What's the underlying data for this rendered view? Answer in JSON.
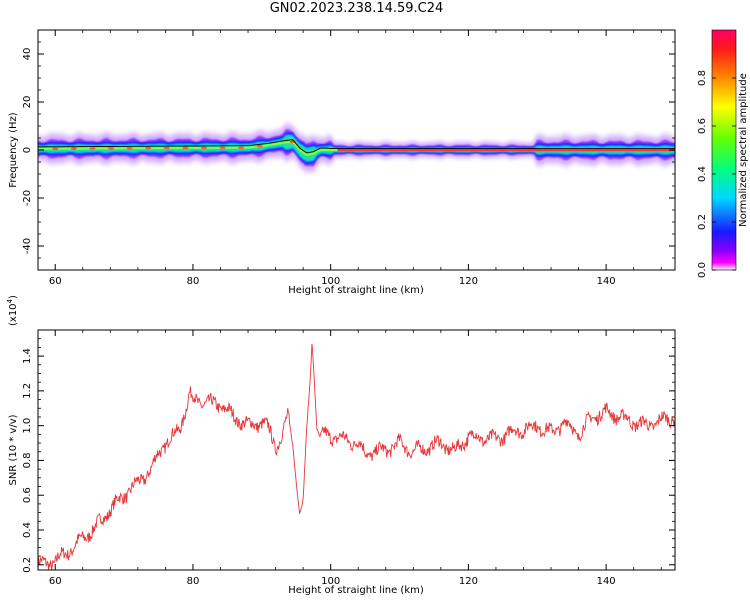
{
  "title": "GN02.2023.238.14.59.C24",
  "chart_data": [
    {
      "type": "heatmap",
      "xlabel": "Height of straight line (km)",
      "ylabel": "Frequency (Hz)",
      "xlim": [
        57.5,
        150
      ],
      "ylim": [
        -50,
        50
      ],
      "xticks": [
        60,
        80,
        100,
        120,
        140
      ],
      "yticks": [
        -40,
        -20,
        0,
        20,
        40
      ],
      "colorbar": {
        "label": "Normalized spectral amplitude",
        "range": [
          0,
          1
        ],
        "ticks": [
          "0.0",
          "0.2",
          "0.4",
          "0.6",
          "0.8"
        ],
        "colormap": "gist_rainbow (red=1.0, violet=0.0)"
      },
      "ridge_frequency": {
        "x": [
          57.5,
          88,
          91,
          93,
          94.5,
          95.5,
          96.5,
          97.5,
          98.5,
          100,
          150
        ],
        "y": [
          0.5,
          1,
          2,
          3,
          3.5,
          0,
          -2,
          -1.5,
          0,
          0,
          0
        ]
      }
    },
    {
      "type": "line",
      "xlabel": "Height of straight line (km)",
      "ylabel": "SNR (10 * v/v)",
      "y_multiplier": "(x10^4)",
      "xlim": [
        57.5,
        150
      ],
      "ylim": [
        0.17,
        1.55
      ],
      "xticks": [
        60,
        80,
        100,
        120,
        140
      ],
      "yticks": [
        0.2,
        0.4,
        0.6,
        0.8,
        1.0,
        1.2,
        1.4
      ],
      "series": [
        {
          "color": "#e8373a",
          "x": [
            57.5,
            60,
            62,
            64,
            66,
            68,
            70,
            72,
            74,
            75,
            76,
            77,
            78,
            79,
            79.5,
            80,
            82,
            84,
            86,
            88,
            90,
            91,
            92,
            93,
            93.8,
            94.5,
            95,
            95.5,
            96,
            96.5,
            97,
            97.3,
            97.6,
            98,
            98.5,
            99,
            100,
            104,
            105,
            108,
            110,
            112,
            116,
            118,
            120,
            124,
            126,
            128,
            130,
            132,
            134,
            136,
            138,
            140,
            142,
            144,
            146,
            148,
            150
          ],
          "y": [
            0.2,
            0.22,
            0.28,
            0.35,
            0.42,
            0.52,
            0.6,
            0.67,
            0.75,
            0.84,
            0.9,
            0.93,
            0.98,
            1.1,
            1.18,
            1.15,
            1.13,
            1.12,
            1.05,
            1.0,
            1.02,
            0.98,
            0.88,
            0.95,
            1.05,
            0.9,
            0.7,
            0.5,
            0.55,
            0.95,
            1.25,
            1.5,
            1.3,
            1.0,
            0.92,
            0.95,
            0.94,
            0.9,
            0.84,
            0.86,
            0.9,
            0.85,
            0.9,
            0.85,
            0.94,
            0.92,
            0.96,
            0.98,
            1.0,
            0.96,
            1.02,
            0.95,
            1.05,
            1.08,
            1.05,
            1.02,
            1.0,
            1.03,
            1.05
          ]
        }
      ]
    }
  ]
}
